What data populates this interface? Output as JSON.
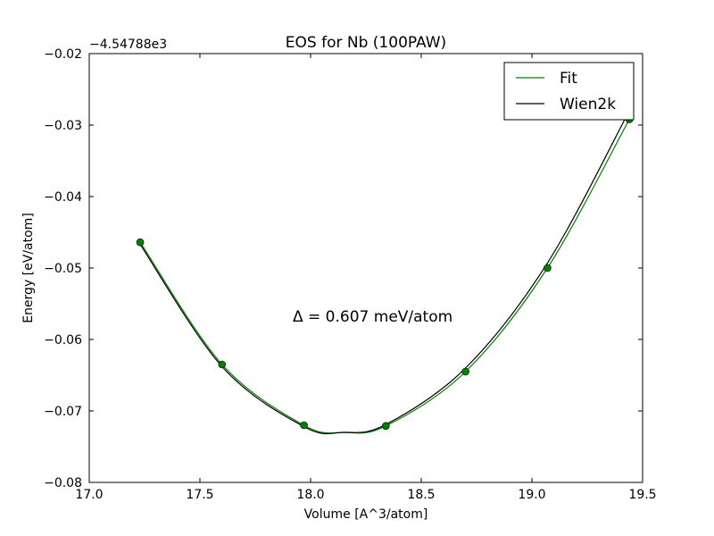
{
  "chart_data": {
    "type": "line",
    "title": "EOS for Nb (100PAW)",
    "xlabel": "Volume [A^3/atom]",
    "ylabel": "Energy [eV/atom]",
    "offset_label": "−4.54788e3",
    "annotation": "Δ = 0.607 meV/atom",
    "xlim": [
      17.0,
      19.5
    ],
    "ylim": [
      -0.08,
      -0.02
    ],
    "xticks": [
      17.0,
      17.5,
      18.0,
      18.5,
      19.0,
      19.5
    ],
    "xtick_labels": [
      "17.0",
      "17.5",
      "18.0",
      "18.5",
      "19.0",
      "19.5"
    ],
    "yticks": [
      -0.08,
      -0.07,
      -0.06,
      -0.05,
      -0.04,
      -0.03,
      -0.02
    ],
    "ytick_labels": [
      "−0.08",
      "−0.07",
      "−0.06",
      "−0.05",
      "−0.04",
      "−0.03",
      "−0.02"
    ],
    "grid": false,
    "legend_position": "top-right",
    "points": {
      "x": [
        17.23,
        17.6,
        17.97,
        18.34,
        18.7,
        19.07,
        19.44
      ],
      "y": [
        -0.0464,
        -0.0635,
        -0.072,
        -0.0721,
        -0.0645,
        -0.05,
        -0.0292
      ],
      "color": "#008000"
    },
    "series": [
      {
        "name": "Fit",
        "color": "#008000",
        "x": [
          17.23,
          17.6,
          17.97,
          18.15,
          18.34,
          18.7,
          19.07,
          19.44
        ],
        "y": [
          -0.0464,
          -0.0635,
          -0.072,
          -0.073,
          -0.0721,
          -0.0645,
          -0.05,
          -0.0292
        ]
      },
      {
        "name": "Wien2k",
        "color": "#000000",
        "x": [
          17.23,
          17.6,
          17.97,
          18.15,
          18.34,
          18.7,
          19.07,
          19.44
        ],
        "y": [
          -0.0467,
          -0.0638,
          -0.0722,
          -0.073,
          -0.0719,
          -0.064,
          -0.0493,
          -0.028
        ]
      }
    ]
  }
}
